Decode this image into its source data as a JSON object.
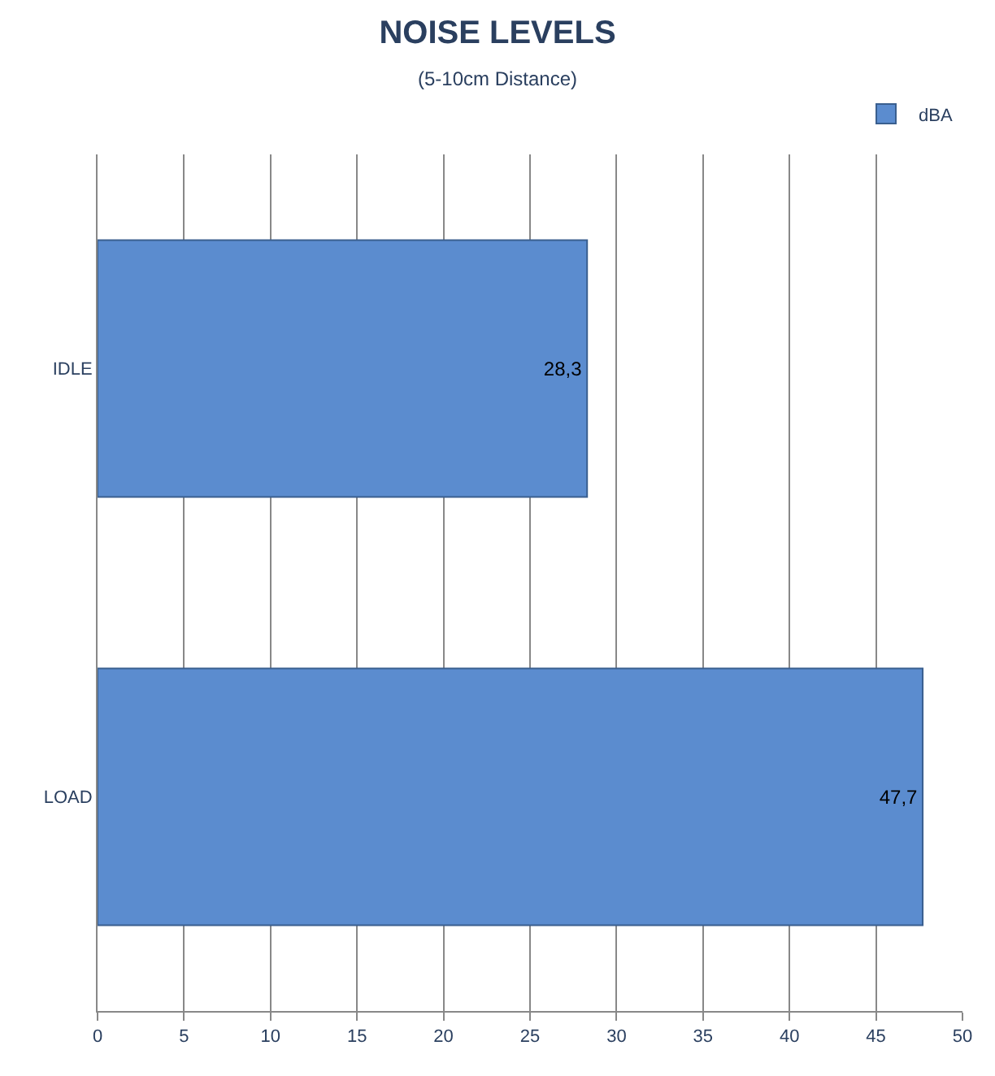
{
  "chart_data": {
    "type": "bar",
    "title": "NOISE LEVELS",
    "subtitle": "(5-10cm Distance)",
    "orientation": "horizontal",
    "categories": [
      "IDLE",
      "LOAD"
    ],
    "series": [
      {
        "name": "dBA",
        "color": "#5b8ccf",
        "values": [
          28.3,
          47.7
        ],
        "value_labels": [
          "28,3",
          "47,7"
        ]
      }
    ],
    "xlim": [
      0,
      50
    ],
    "xticks": [
      0,
      5,
      10,
      15,
      20,
      25,
      30,
      35,
      40,
      45,
      50
    ],
    "grid": "x",
    "legend": "top right"
  }
}
